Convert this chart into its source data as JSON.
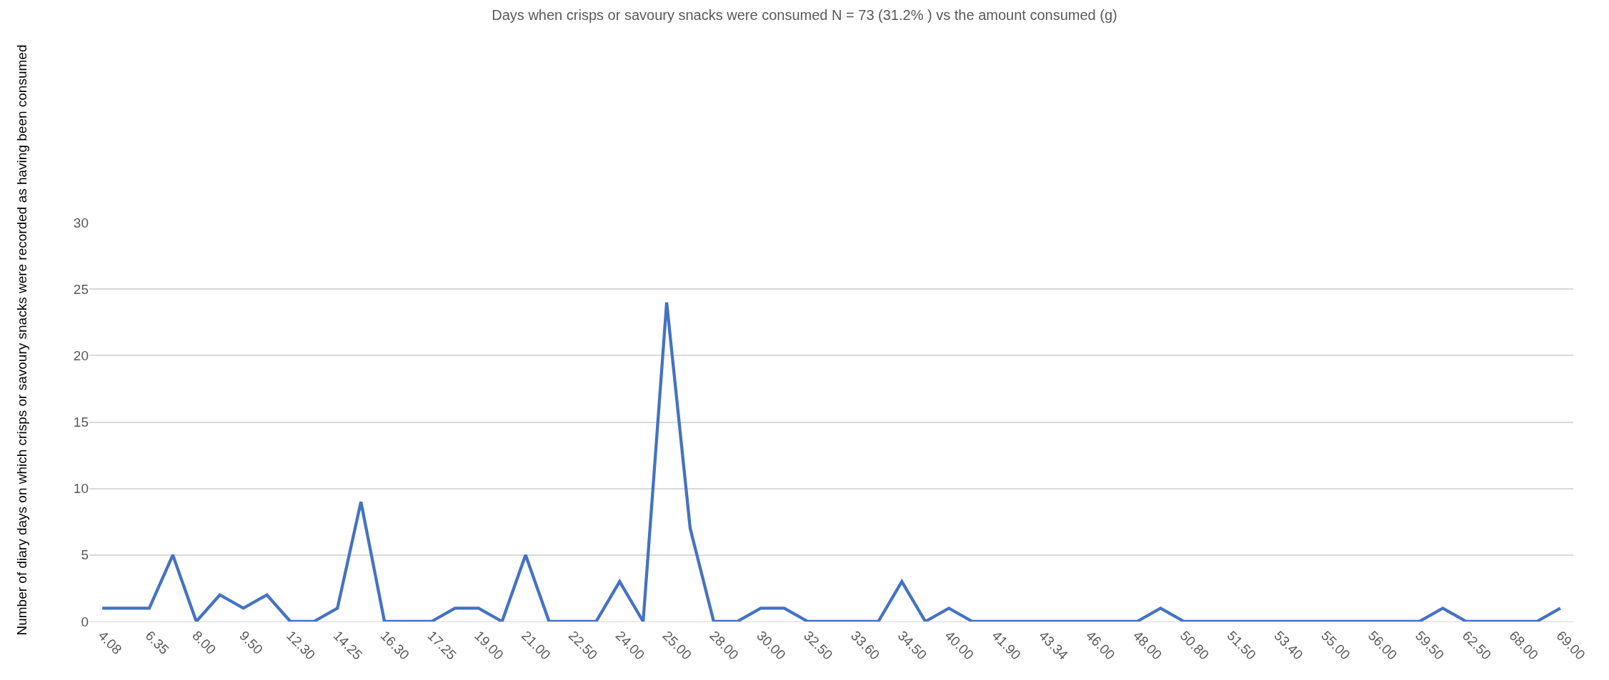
{
  "chart_data": {
    "type": "line",
    "title": "Days when crisps or savoury snacks were consumed N = 73 (31.2% ) vs the amount consumed (g)",
    "ylabel": "Number of diary days on which crisps or savoury snacks were recorded as having been consumed",
    "categories": [
      "4.08",
      null,
      "6.35",
      null,
      "8.00",
      null,
      "9.50",
      null,
      "12.30",
      null,
      "14.25",
      null,
      "16.30",
      null,
      "17.25",
      null,
      "19.00",
      null,
      "21.00",
      null,
      "22.50",
      null,
      "24.00",
      null,
      "25.00",
      null,
      "28.00",
      null,
      "30.00",
      null,
      "32.50",
      null,
      "33.60",
      null,
      "34.50",
      null,
      "40.00",
      null,
      "41.90",
      null,
      "43.34",
      null,
      "46.00",
      null,
      "48.00",
      null,
      "50.80",
      null,
      "51.50",
      null,
      "53.40",
      null,
      "55.00",
      null,
      "56.00",
      null,
      "59.50",
      null,
      "62.50",
      null,
      "68.00",
      null,
      "69.00"
    ],
    "series": [
      {
        "color": "#4472c4",
        "values": [
          1,
          1,
          1,
          5,
          0,
          2,
          1,
          2,
          0,
          0,
          1,
          9,
          0,
          0,
          0,
          1,
          1,
          0,
          5,
          0,
          0,
          0,
          3,
          0,
          24,
          7,
          0,
          0,
          1,
          1,
          0,
          0,
          0,
          0,
          3,
          0,
          1,
          0,
          0,
          0,
          0,
          0,
          0,
          0,
          0,
          1,
          0,
          0,
          0,
          0,
          0,
          0,
          0,
          0,
          0,
          0,
          0,
          1,
          0,
          0,
          0,
          0,
          1
        ]
      }
    ],
    "ylim": [
      0,
      30
    ],
    "yticks": [
      0,
      5,
      10,
      15,
      20,
      25,
      30
    ],
    "grid": "y",
    "marker": "none",
    "line_style": "solid"
  }
}
